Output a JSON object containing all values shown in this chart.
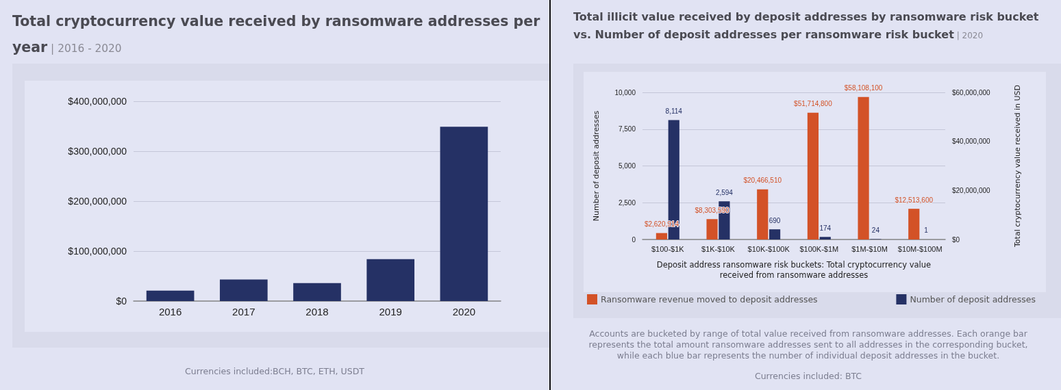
{
  "chart_data": [
    {
      "type": "bar",
      "title": "Total cryptocurrency value received by ransomware addresses per year",
      "subtitle": "| 2016 - 2020",
      "categories": [
        "2016",
        "2017",
        "2018",
        "2019",
        "2020"
      ],
      "series": [
        {
          "color": "#253165",
          "values": [
            21000000,
            43000000,
            36000000,
            84000000,
            349000000
          ]
        }
      ],
      "ylim": [
        0,
        400000000
      ],
      "yticks": [
        {
          "value": 0,
          "label": "$0"
        },
        {
          "value": 100000000,
          "label": "$100,000,000"
        },
        {
          "value": 200000000,
          "label": "$200,000,000"
        },
        {
          "value": 300000000,
          "label": "$300,000,000"
        },
        {
          "value": 400000000,
          "label": "$400,000,000"
        }
      ],
      "grid": "y",
      "legend": false,
      "annotations": [
        "Currencies included:BCH, BTC, ETH, USDT"
      ]
    },
    {
      "type": "bar",
      "title": "Total illicit value received by deposit addresses by ransomware risk bucket vs. Number of deposit addresses per ransomware risk bucket",
      "subtitle": "| 2020",
      "xlabel": "Deposit address ransomware risk buckets: Total cryptocurrency value received from ransomware addresses",
      "ylabel": "Number of deposit addresses",
      "y2label": "Total cryptocurrency value received in USD",
      "categories": [
        "$100-$1K",
        "$1K-$10K",
        "$10K-$100K",
        "$100K-$1M",
        "$1M-$10M",
        "$10M-$100M"
      ],
      "series": [
        {
          "name": "Ransomware revenue moved to deposit addresses",
          "color": "#d35227",
          "axis": "y2",
          "values": [
            2620914,
            8303590,
            20466510,
            51714800,
            58108100,
            12513600
          ],
          "value_labels": [
            "$2,620,914",
            "$8,303,590",
            "$20,466,510",
            "$51,714,800",
            "$58,108,100",
            "$12,513,600"
          ]
        },
        {
          "name": "Number of deposit addresses",
          "color": "#253165",
          "values": [
            8114,
            2594,
            690,
            174,
            24,
            1
          ],
          "value_labels": [
            "8,114",
            "2,594",
            "690",
            "174",
            "24",
            "1"
          ]
        }
      ],
      "ylim": [
        0,
        10000
      ],
      "yticks": [
        0,
        {
          "value": 2500,
          "label": "2,500"
        },
        {
          "value": 5000,
          "label": "5,000"
        },
        {
          "value": 7500,
          "label": "7,500"
        },
        {
          "value": 10000,
          "label": "10,000"
        }
      ],
      "y2lim": [
        0,
        60000000
      ],
      "y2ticks": [
        {
          "value": 0,
          "label": "$0"
        },
        {
          "value": 20000000,
          "label": "$20,000,000"
        },
        {
          "value": 40000000,
          "label": "$40,000,000"
        },
        {
          "value": 60000000,
          "label": "$60,000,000"
        }
      ],
      "grid": "y",
      "legend": "bottom",
      "annotations": [
        "Accounts are bucketed by range of total value received from ransomware addresses. Each orange bar represents the total amount ransomware addresses sent to all addresses in the corresponding bucket, while each blue bar represents the number of individual deposit addresses in the bucket.",
        "Currencies included: BTC"
      ]
    }
  ]
}
